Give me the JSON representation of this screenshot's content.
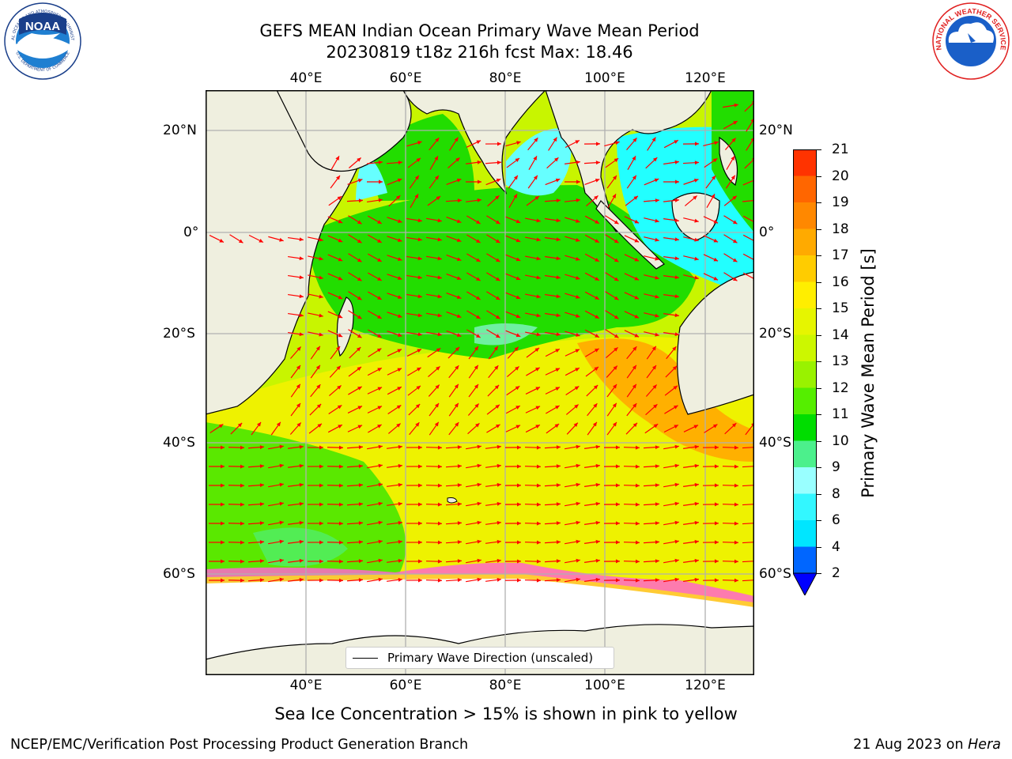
{
  "title": {
    "line1": "GEFS MEAN Indian Ocean Primary Wave Mean Period",
    "line2": "20230819 t18z 216h fcst   Max: 18.46"
  },
  "map": {
    "lon_labels": [
      "40°E",
      "60°E",
      "80°E",
      "100°E",
      "120°E"
    ],
    "lat_labels": [
      "20°N",
      "0°",
      "20°S",
      "40°S",
      "60°S"
    ],
    "legend": "Primary Wave Direction (unscaled)",
    "background_colors": {
      "ocean_base": "#c8f500",
      "land": "#efefdf",
      "ice": "#ffffff",
      "arrow": "#ff0000"
    }
  },
  "colorbar": {
    "label": "Primary Wave Mean Period [s]",
    "tick_labels": [
      "2",
      "4",
      "6",
      "8",
      "9",
      "10",
      "11",
      "12",
      "13",
      "14",
      "15",
      "16",
      "17",
      "18",
      "19",
      "20",
      "21"
    ],
    "colors": [
      "#0066ff",
      "#00e6ff",
      "#33f7ff",
      "#99ffff",
      "#4cf08c",
      "#00dd00",
      "#55ee00",
      "#99f200",
      "#ccf700",
      "#e6f500",
      "#ffee00",
      "#ffcc00",
      "#ffaa00",
      "#ff8800",
      "#ff6600",
      "#ff3300"
    ],
    "extend_color": "#0000ff"
  },
  "caption": "Sea Ice Concentration > 15% is shown in pink to yellow",
  "footer": {
    "left": "NCEP/EMC/Verification Post Processing Product Generation Branch",
    "right_prefix": "21 Aug 2023 on ",
    "right_machine": "Hera"
  },
  "logos": {
    "noaa_text": "NOAA",
    "noaa_ring_top": "NATIONAL OCEANIC AND ATMOSPHERIC ADMINISTRATION",
    "noaa_ring_bottom": "U.S. DEPARTMENT OF COMMERCE",
    "nws_ring": "NATIONAL WEATHER SERVICE"
  }
}
